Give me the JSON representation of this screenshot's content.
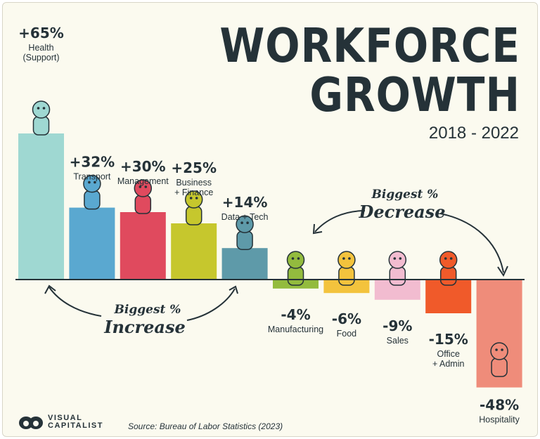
{
  "title_line1": "WORKFORCE",
  "title_line2": "GROWTH",
  "subtitle": "2018 - 2022",
  "annotations": {
    "increase_line1": "Biggest %",
    "increase_line2": "Increase",
    "decrease_line1": "Biggest %",
    "decrease_line2": "Decrease"
  },
  "source": "Source: Bureau of Labor Statistics (2023)",
  "brand": {
    "line1": "VISUAL",
    "line2": "CAPITALIST"
  },
  "chart_data": {
    "type": "bar",
    "categories": [
      [
        "Health",
        "(Support)"
      ],
      [
        "Transport"
      ],
      [
        "Management"
      ],
      [
        "Business",
        "+ Finance"
      ],
      [
        "Data + Tech"
      ],
      [
        "Manufacturing"
      ],
      [
        "Food"
      ],
      [
        "Sales"
      ],
      [
        "Office",
        "+ Admin"
      ],
      [
        "Hospitality"
      ]
    ],
    "values": [
      65,
      32,
      30,
      25,
      14,
      -4,
      -6,
      -9,
      -15,
      -48
    ],
    "value_labels": [
      "+65%",
      "+32%",
      "+30%",
      "+25%",
      "+14%",
      "-4%",
      "-6%",
      "-9%",
      "-15%",
      "-48%"
    ],
    "colors": [
      "#9fd8d2",
      "#5aa8d0",
      "#e04a5e",
      "#c6c72d",
      "#5e9aa9",
      "#93bb3e",
      "#f3c33d",
      "#f2bcd0",
      "#f05a2a",
      "#ef8c7a"
    ],
    "unit": "%",
    "ylim": [
      -48,
      65
    ],
    "grid": false,
    "legend": "none"
  }
}
